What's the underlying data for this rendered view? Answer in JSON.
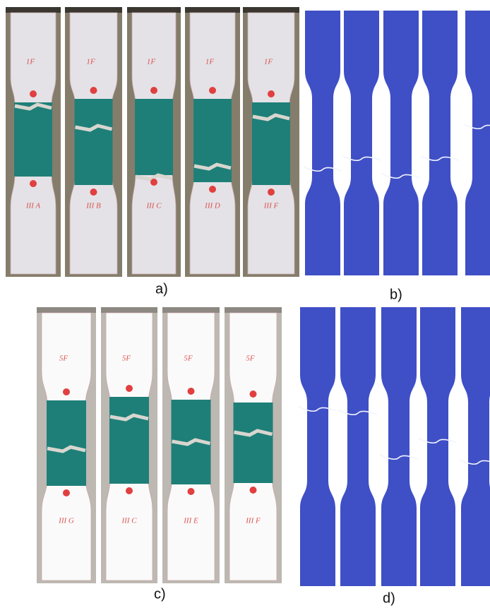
{
  "panels": [
    {
      "label": "a)",
      "specimens": [
        {
          "top": "1F",
          "bottom": "III A"
        },
        {
          "top": "1F",
          "bottom": "III B"
        },
        {
          "top": "1F",
          "bottom": "III C"
        },
        {
          "top": "1F",
          "bottom": "III D"
        },
        {
          "top": "1F",
          "bottom": "III F"
        }
      ]
    },
    {
      "label": "b)"
    },
    {
      "label": "c)",
      "specimens": [
        {
          "top": "5F",
          "bottom": "III G"
        },
        {
          "top": "5F",
          "bottom": "III C"
        },
        {
          "top": "5F",
          "bottom": "III E"
        },
        {
          "top": "5F",
          "bottom": "III F"
        }
      ]
    },
    {
      "label": "d)"
    }
  ]
}
